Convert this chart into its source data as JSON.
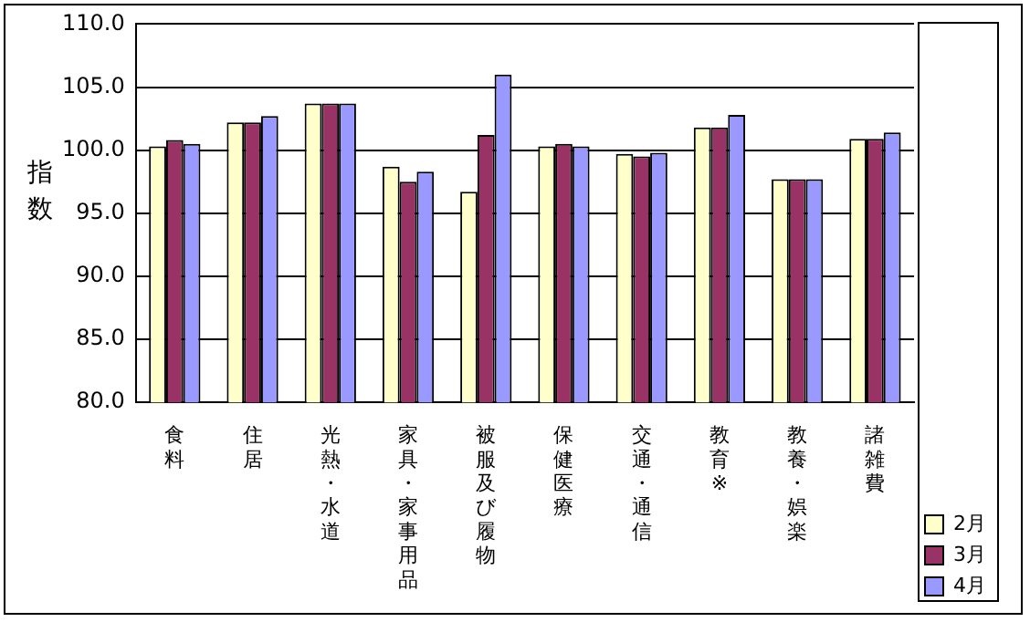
{
  "chart_data": {
    "type": "bar",
    "ylabel": "指数",
    "categories": [
      "食料",
      "住居",
      "光熱・水道",
      "家具・家事用品",
      "被服及び履物",
      "保健医療",
      "交通・通信",
      "教育※",
      "教養・娯楽",
      "諸雑費"
    ],
    "series": [
      {
        "name": "2月",
        "color": "#ffffcc",
        "values": [
          100.3,
          102.2,
          103.7,
          98.7,
          96.7,
          100.3,
          99.7,
          101.8,
          97.7,
          100.9
        ]
      },
      {
        "name": "3月",
        "color": "#993366",
        "values": [
          100.8,
          102.2,
          103.7,
          97.5,
          101.2,
          100.5,
          99.5,
          101.8,
          97.7,
          100.9
        ]
      },
      {
        "name": "4月",
        "color": "#9999ff",
        "values": [
          100.5,
          102.7,
          103.7,
          98.3,
          106.0,
          100.3,
          99.8,
          102.8,
          97.7,
          101.4
        ]
      }
    ],
    "ylim": [
      80,
      110
    ],
    "yticks": [
      {
        "value": 80,
        "label": "80.0"
      },
      {
        "value": 85,
        "label": "85.0"
      },
      {
        "value": 90,
        "label": "90.0"
      },
      {
        "value": 95,
        "label": "95.0"
      },
      {
        "value": 100,
        "label": "100.0"
      },
      {
        "value": 105,
        "label": "105.0"
      },
      {
        "value": 110,
        "label": "110.0"
      }
    ],
    "grid": "y",
    "legend": "bottom right"
  }
}
